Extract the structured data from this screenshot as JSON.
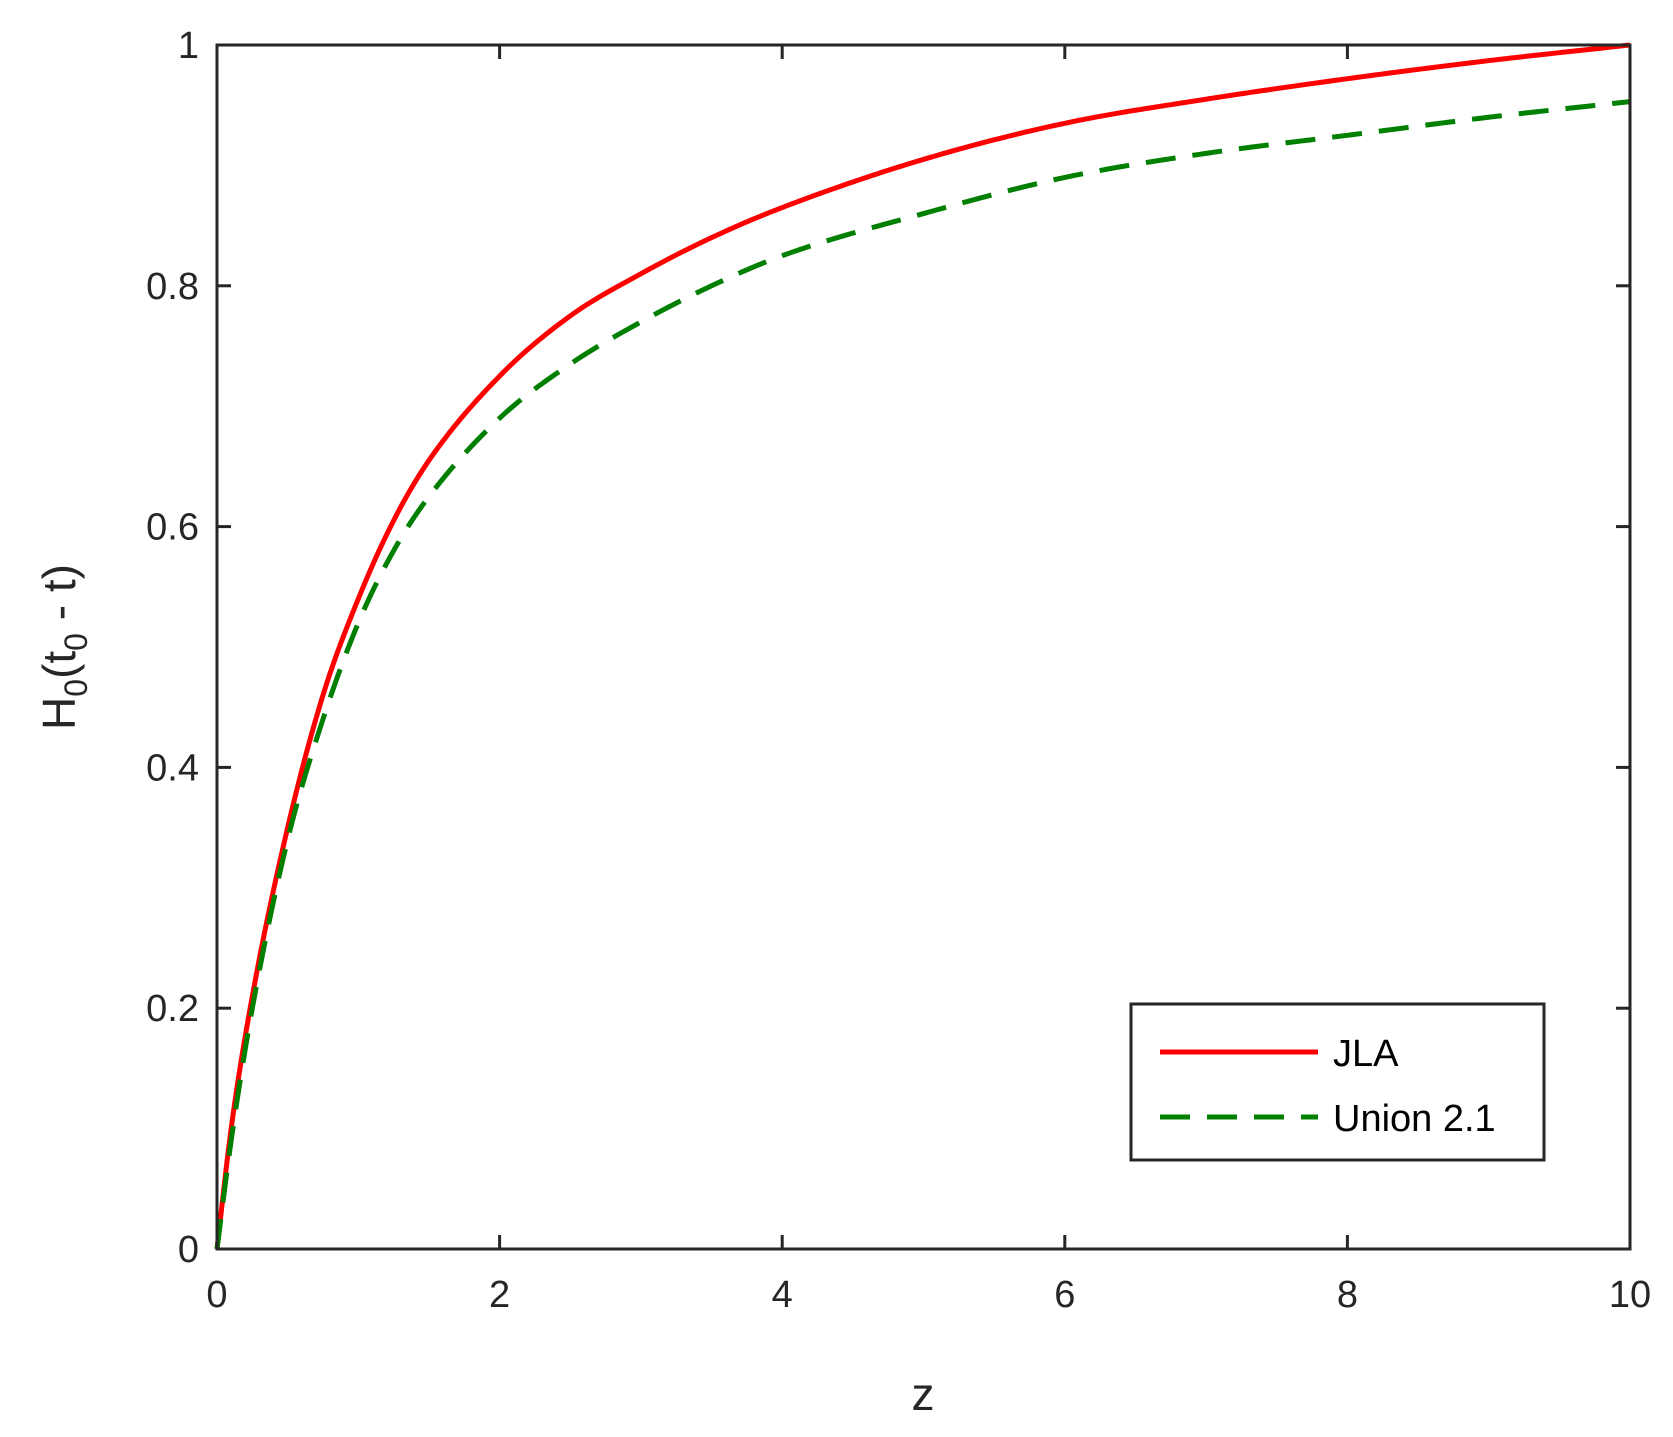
{
  "chart_data": {
    "type": "line",
    "title": "",
    "xlabel": "z",
    "ylabel": {
      "main": "H",
      "sub1": "0",
      "mid": "(t",
      "sub2": "0",
      "end": " - t)"
    },
    "xlim": [
      0,
      10
    ],
    "ylim": [
      0,
      1
    ],
    "xticks": [
      0,
      2,
      4,
      6,
      8,
      10
    ],
    "yticks": [
      0,
      0.2,
      0.4,
      0.6,
      0.8,
      1
    ],
    "xtick_labels": [
      "0",
      "2",
      "4",
      "6",
      "8",
      "10"
    ],
    "ytick_labels": [
      "0",
      "0.2",
      "0.4",
      "0.6",
      "0.8",
      "1"
    ],
    "grid": false,
    "legend_position": "bottom-right",
    "x": [
      0,
      0.1,
      0.25,
      0.5,
      0.75,
      1,
      1.25,
      1.5,
      2,
      2.5,
      3,
      3.5,
      4,
      5,
      6,
      7,
      8,
      9,
      10
    ],
    "series": [
      {
        "name": "JLA",
        "color": "#ff0000",
        "style": "solid",
        "values": [
          0,
          0.1,
          0.21,
          0.35,
          0.46,
          0.54,
          0.605,
          0.655,
          0.725,
          0.775,
          0.81,
          0.84,
          0.865,
          0.905,
          0.935,
          0.955,
          0.972,
          0.987,
          1.0
        ]
      },
      {
        "name": "Union 2.1",
        "color": "#007f00",
        "style": "dashed",
        "values": [
          0,
          0.09,
          0.2,
          0.34,
          0.44,
          0.52,
          0.58,
          0.625,
          0.69,
          0.735,
          0.77,
          0.8,
          0.825,
          0.86,
          0.89,
          0.91,
          0.925,
          0.94,
          0.953
        ]
      }
    ]
  }
}
